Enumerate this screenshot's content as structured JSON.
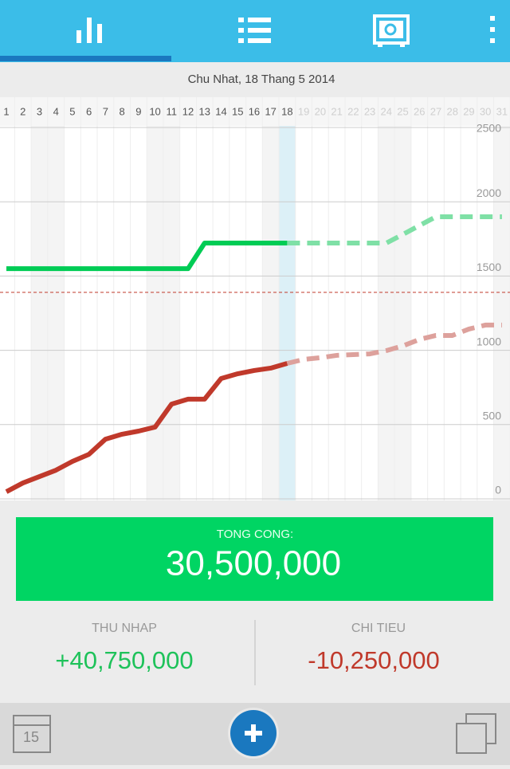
{
  "date_bar": "Chu Nhat, 18 Thang 5 2014",
  "chart_data": {
    "type": "line",
    "x": [
      1,
      2,
      3,
      4,
      5,
      6,
      7,
      8,
      9,
      10,
      11,
      12,
      13,
      14,
      15,
      16,
      17,
      18,
      19,
      20,
      21,
      22,
      23,
      24,
      25,
      26,
      27,
      28,
      29,
      30,
      31
    ],
    "today": 18,
    "weekend_days": [
      3,
      4,
      10,
      11,
      17,
      18,
      24,
      25,
      31
    ],
    "ylim": [
      0,
      2500
    ],
    "yticks": [
      0,
      500,
      1000,
      1500,
      2000,
      2500
    ],
    "grid": true,
    "reference_line": {
      "value": 1390,
      "color": "#c0392b"
    },
    "series": [
      {
        "name": "income",
        "color": "#00cc55",
        "dashed": false,
        "values": [
          1550,
          1550,
          1550,
          1550,
          1550,
          1550,
          1550,
          1550,
          1550,
          1550,
          1550,
          1550,
          1722,
          1722,
          1722,
          1722,
          1722,
          1722,
          null,
          null,
          null,
          null,
          null,
          null,
          null,
          null,
          null,
          null,
          null,
          null,
          null
        ]
      },
      {
        "name": "income forecast",
        "color": "#7fe0a6",
        "dashed": true,
        "values": [
          null,
          null,
          null,
          null,
          null,
          null,
          null,
          null,
          null,
          null,
          null,
          null,
          null,
          null,
          null,
          null,
          null,
          1722,
          1722,
          1722,
          1722,
          1722,
          1722,
          1722,
          1780,
          1840,
          1899,
          1899,
          1899,
          1899,
          1899
        ]
      },
      {
        "name": "expense",
        "color": "#c0392b",
        "dashed": false,
        "values": [
          48,
          107,
          150,
          193,
          252,
          300,
          402,
          435,
          456,
          483,
          638,
          671,
          671,
          810,
          842,
          864,
          880,
          912,
          null,
          null,
          null,
          null,
          null,
          null,
          null,
          null,
          null,
          null,
          null,
          null,
          null
        ]
      },
      {
        "name": "expense forecast",
        "color": "#dda19c",
        "dashed": true,
        "values": [
          null,
          null,
          null,
          null,
          null,
          null,
          null,
          null,
          null,
          null,
          null,
          null,
          null,
          null,
          null,
          null,
          null,
          912,
          939,
          950,
          966,
          971,
          976,
          998,
          1030,
          1073,
          1100,
          1100,
          1143,
          1170,
          1170
        ]
      }
    ]
  },
  "summary": {
    "total_label": "TONG CONG:",
    "total": "30,500,000",
    "income_label": "THU NHAP",
    "income": "+40,750,000",
    "expense_label": "CHI TIEU",
    "expense": "-10,250,000"
  },
  "calendar_icon": "15"
}
